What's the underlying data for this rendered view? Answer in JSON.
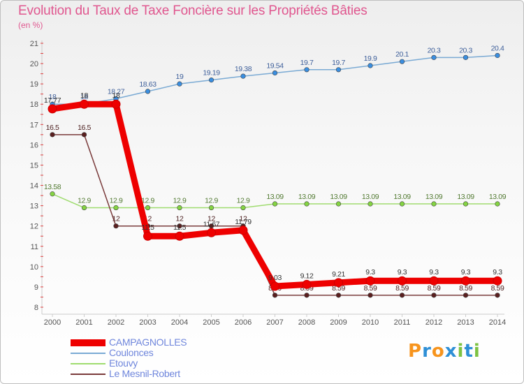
{
  "title": "Evolution du Taux de Taxe Foncière sur les Propriétés Bâties",
  "subtitle": "(en %)",
  "brand": {
    "letters": [
      "P",
      "r",
      "o",
      "x",
      "i",
      "t",
      "i"
    ],
    "colors": [
      "#f7941d",
      "#2e8fd6",
      "#f7941d",
      "#2e8fd6",
      "#7dc242",
      "#2e8fd6",
      "#7dc242"
    ]
  },
  "chart_data": {
    "type": "line",
    "title": "Evolution du Taux de Taxe Foncière sur les Propriétés Bâties",
    "ylabel": "(en %)",
    "xlabel": "",
    "x": [
      "2000",
      "2001",
      "2002",
      "2003",
      "2004",
      "2005",
      "2006",
      "2007",
      "2008",
      "2009",
      "2010",
      "2011",
      "2012",
      "2013",
      "2014"
    ],
    "ylim": [
      8,
      21
    ],
    "yticks": [
      "8",
      "9",
      "10",
      "11",
      "12",
      "13",
      "14",
      "15",
      "16",
      "17",
      "18",
      "19",
      "20",
      "21"
    ],
    "legend_position": "bottom-left",
    "series": [
      {
        "name": "Coulonces",
        "color": "#7aaad4",
        "marker": "#3a8ee0",
        "label_color": "#3e5f9a",
        "values": [
          18,
          18,
          18.27,
          18.63,
          19,
          19.19,
          19.38,
          19.54,
          19.7,
          19.7,
          19.9,
          20.1,
          20.3,
          20.3,
          20.4
        ],
        "labels": [
          "18",
          "18",
          "18.27",
          "18.63",
          "19",
          "19.19",
          "19.38",
          "19.54",
          "19.7",
          "19.7",
          "19.9",
          "20.1",
          "20.3",
          "20.3",
          "20.4"
        ]
      },
      {
        "name": "Etouvy",
        "color": "#9fdc6f",
        "marker": "#84d442",
        "label_color": "#527a32",
        "values": [
          13.58,
          12.9,
          12.9,
          12.9,
          12.9,
          12.9,
          12.9,
          13.09,
          13.09,
          13.09,
          13.09,
          13.09,
          13.09,
          13.09,
          13.09
        ],
        "labels": [
          "13.58",
          "12.9",
          "12.9",
          "12.9",
          "12.9",
          "12.9",
          "12.9",
          "13.09",
          "13.09",
          "13.09",
          "13.09",
          "13.09",
          "13.09",
          "13.09",
          "13.09"
        ]
      },
      {
        "name": "Le Mesnil-Robert",
        "color": "#7a3b3b",
        "marker": "#5a1f1f",
        "label_color": "#4d2020",
        "values": [
          16.5,
          16.5,
          12,
          12,
          12,
          12,
          12,
          8.59,
          8.59,
          8.59,
          8.59,
          8.59,
          8.59,
          8.59,
          8.59
        ],
        "labels": [
          "16.5",
          "16.5",
          "12",
          "12",
          "12",
          "12",
          "12",
          "8.59",
          "8.59",
          "8.59",
          "8.59",
          "8.59",
          "8.59",
          "8.59",
          "8.59"
        ]
      },
      {
        "name": "CAMPAGNOLLES",
        "color": "#ee0000",
        "marker": "#ee0000",
        "label_color": "#333333",
        "values": [
          17.77,
          18,
          18,
          11.5,
          11.5,
          11.67,
          11.79,
          9.03,
          9.12,
          9.21,
          9.3,
          9.3,
          9.3,
          9.3,
          9.3
        ],
        "labels": [
          "17.77",
          "18",
          "18",
          "11.5",
          "11.5",
          "11.67",
          "11.79",
          "9.03",
          "9.12",
          "9.21",
          "9.3",
          "9.3",
          "9.3",
          "9.3",
          "9.3"
        ]
      }
    ],
    "legend": [
      "CAMPAGNOLLES",
      "Coulonces",
      "Etouvy",
      "Le Mesnil-Robert"
    ]
  }
}
